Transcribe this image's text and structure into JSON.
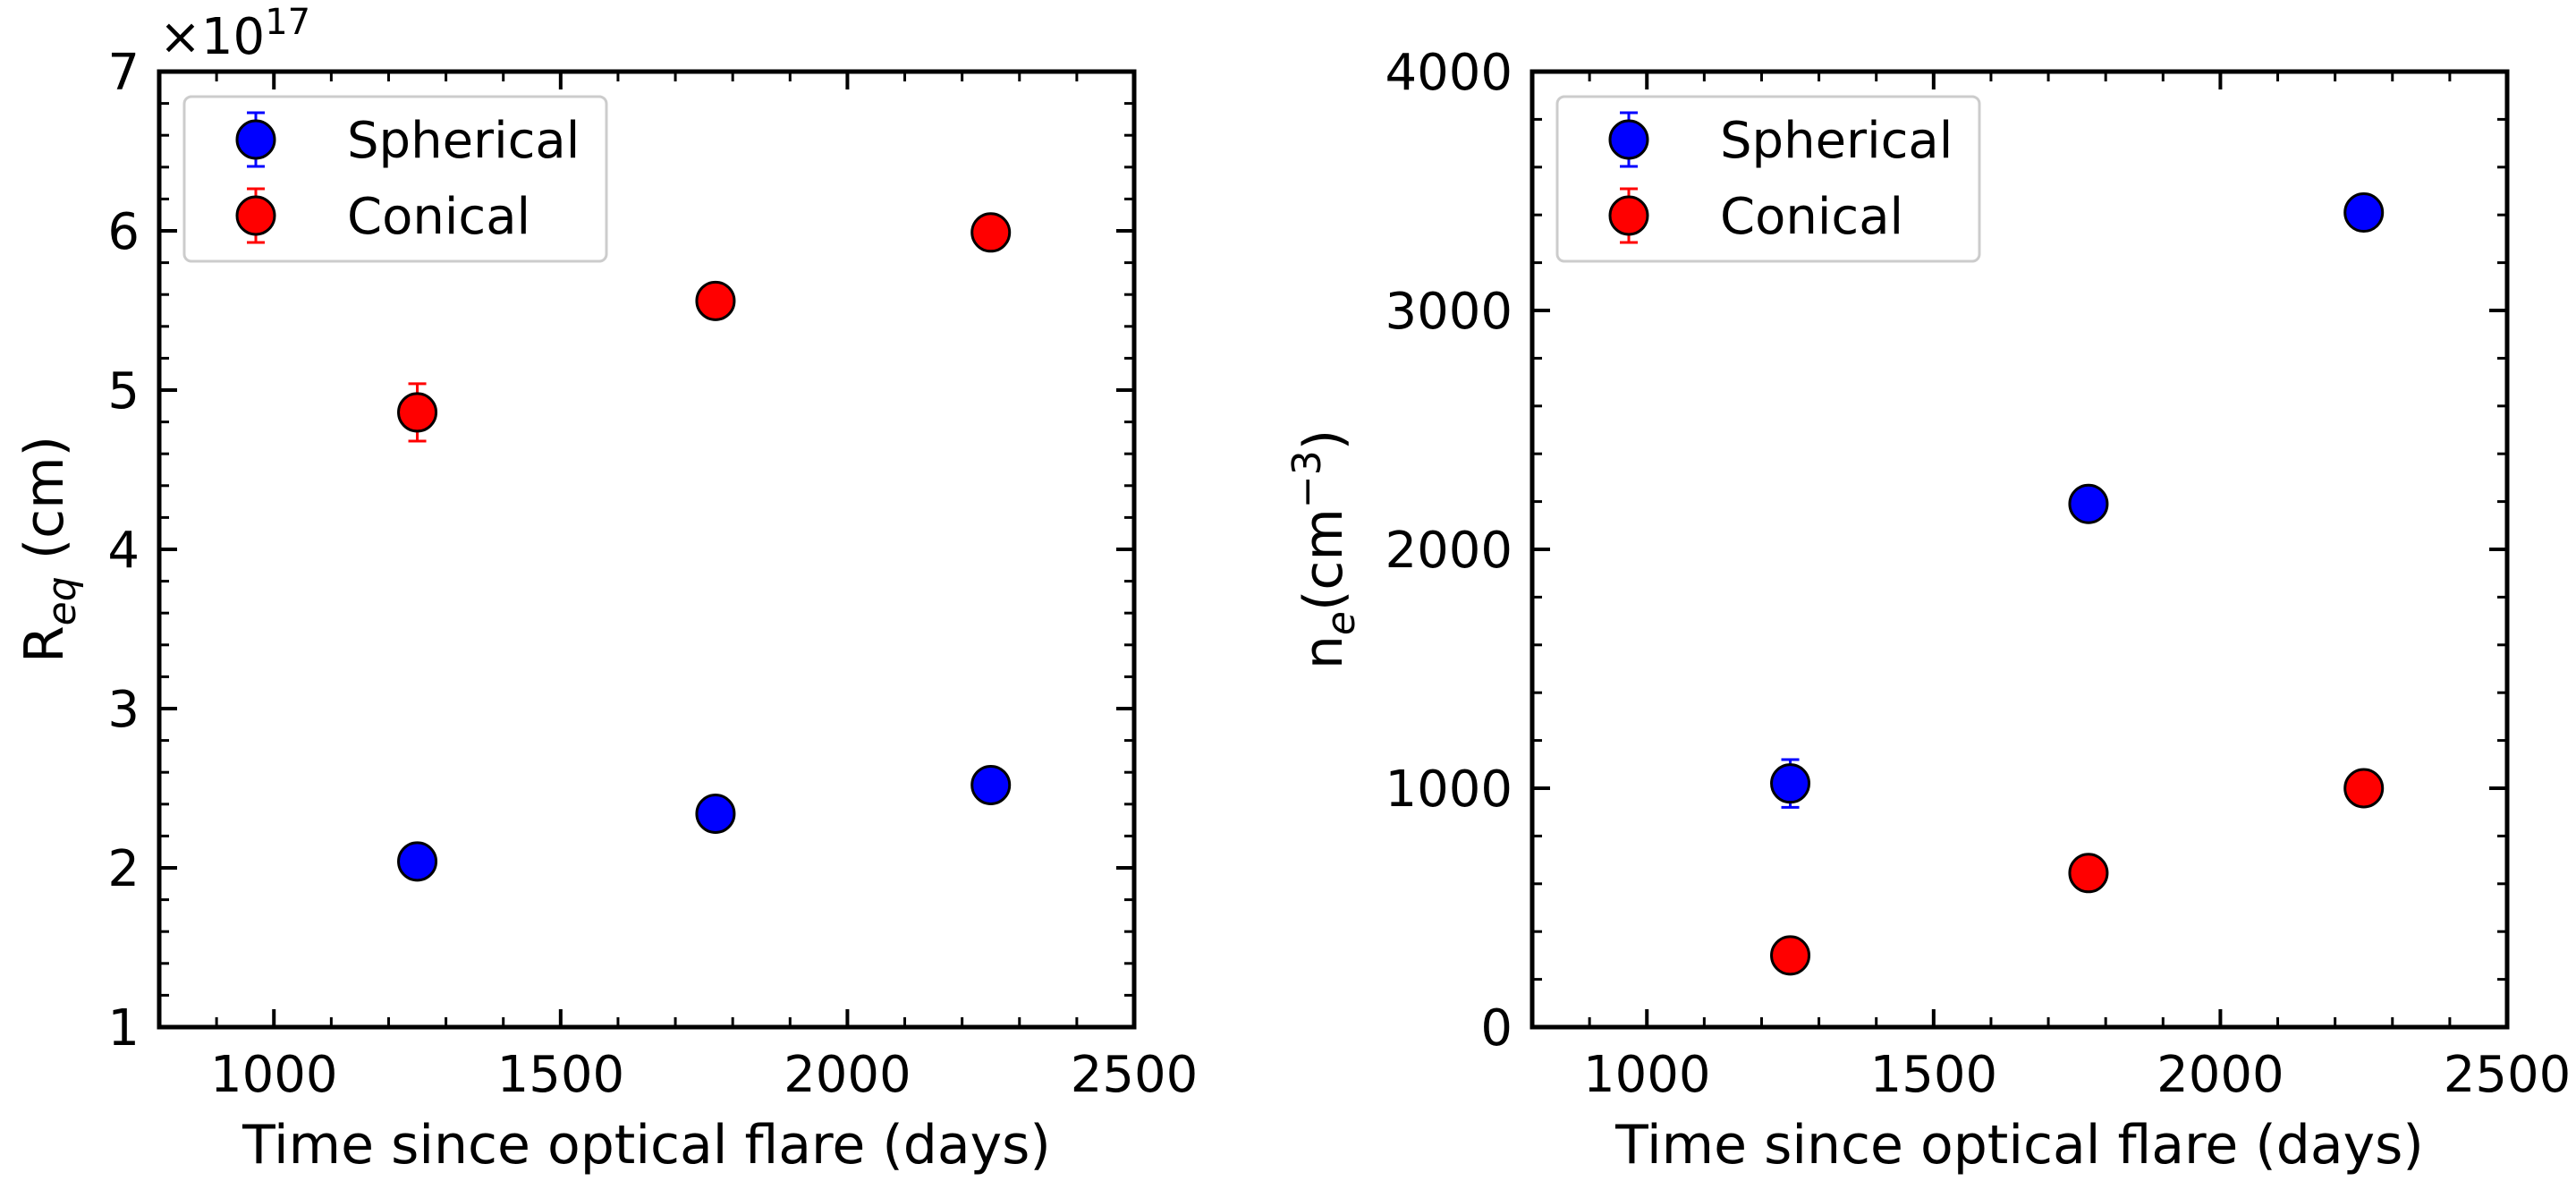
{
  "chart_data": [
    {
      "type": "scatter",
      "title": "",
      "xlabel": "Time since optical flare (days)",
      "ylabel_main": "R",
      "ylabel_sub": "eq",
      "ylabel_rest": " (cm)",
      "offset_text_prefix": "×10",
      "offset_text_exp": "17",
      "xlim": [
        800,
        2500
      ],
      "ylim": [
        1,
        7
      ],
      "x_ticks": [
        1000,
        1500,
        2000,
        2500
      ],
      "x_tick_labels": [
        "1000",
        "1500",
        "2000",
        "2500"
      ],
      "y_ticks": [
        1,
        2,
        3,
        4,
        5,
        6,
        7
      ],
      "y_tick_labels": [
        "1",
        "2",
        "3",
        "4",
        "5",
        "6",
        "7"
      ],
      "x_minor_step": 100,
      "y_minor_step": 0.2,
      "grid": false,
      "legend_position": "top-left",
      "series": [
        {
          "name": "Spherical",
          "color": "#0000ff",
          "x": [
            1250,
            1770,
            2250
          ],
          "y": [
            2.04,
            2.34,
            2.52
          ],
          "yerr": [
            0.03,
            0.03,
            0.03
          ]
        },
        {
          "name": "Conical",
          "color": "#ff0000",
          "x": [
            1250,
            1770,
            2250
          ],
          "y": [
            4.86,
            5.56,
            5.99
          ],
          "yerr": [
            0.18,
            0.04,
            0.04
          ]
        }
      ]
    },
    {
      "type": "scatter",
      "title": "",
      "xlabel": "Time since optical flare (days)",
      "ylabel_main": "n",
      "ylabel_sub": "e",
      "ylabel_rest": "(cm",
      "ylabel_sup": "−3",
      "ylabel_close": ")",
      "xlim": [
        800,
        2500
      ],
      "ylim": [
        0,
        4000
      ],
      "x_ticks": [
        1000,
        1500,
        2000,
        2500
      ],
      "x_tick_labels": [
        "1000",
        "1500",
        "2000",
        "2500"
      ],
      "y_ticks": [
        0,
        1000,
        2000,
        3000,
        4000
      ],
      "y_tick_labels": [
        "0",
        "1000",
        "2000",
        "3000",
        "4000"
      ],
      "x_minor_step": 100,
      "y_minor_step": 200,
      "grid": false,
      "legend_position": "top-left",
      "series": [
        {
          "name": "Spherical",
          "color": "#0000ff",
          "x": [
            1250,
            1770,
            2250
          ],
          "y": [
            1020,
            2190,
            3410
          ],
          "yerr": [
            100,
            20,
            20
          ]
        },
        {
          "name": "Conical",
          "color": "#ff0000",
          "x": [
            1250,
            1770,
            2250
          ],
          "y": [
            300,
            645,
            1000
          ],
          "yerr": [
            15,
            15,
            15
          ]
        }
      ]
    }
  ]
}
